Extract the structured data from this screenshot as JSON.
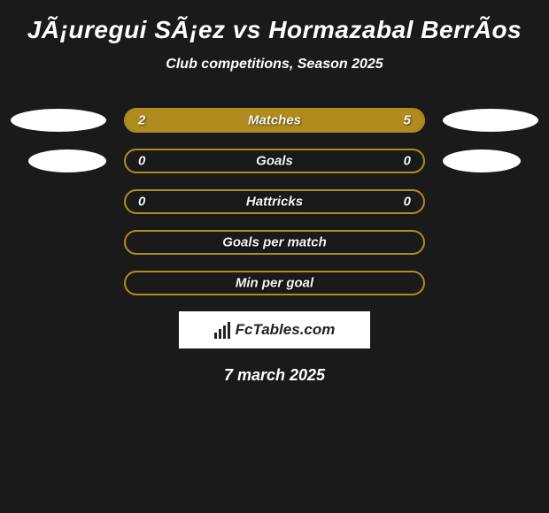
{
  "title": "JÃ¡uregui SÃ¡ez vs Hormazabal BerrÃ­os",
  "subtitle": "Club competitions, Season 2025",
  "colors": {
    "background": "#1a1a1a",
    "bar_border": "#b08c1f",
    "bar_left_fill": "#b08c1f",
    "bar_right_fill": "#b08c1f",
    "emblem_bg": "#ffffff",
    "footer_bg": "#ffffff",
    "text": "#ffffff"
  },
  "rows": [
    {
      "label": "Matches",
      "left_value": "2",
      "right_value": "5",
      "left_pct": 28.6,
      "right_pct": 71.4,
      "show_left_emblem": true,
      "show_right_emblem": true
    },
    {
      "label": "Goals",
      "left_value": "0",
      "right_value": "0",
      "left_pct": 0,
      "right_pct": 0,
      "show_left_emblem": true,
      "show_right_emblem": true
    },
    {
      "label": "Hattricks",
      "left_value": "0",
      "right_value": "0",
      "left_pct": 0,
      "right_pct": 0,
      "show_left_emblem": false,
      "show_right_emblem": false
    },
    {
      "label": "Goals per match",
      "left_value": "",
      "right_value": "",
      "left_pct": 0,
      "right_pct": 0,
      "show_left_emblem": false,
      "show_right_emblem": false
    },
    {
      "label": "Min per goal",
      "left_value": "",
      "right_value": "",
      "left_pct": 0,
      "right_pct": 0,
      "show_left_emblem": false,
      "show_right_emblem": false
    }
  ],
  "footer": {
    "brand": "FcTables.com"
  },
  "date": "7 march 2025"
}
